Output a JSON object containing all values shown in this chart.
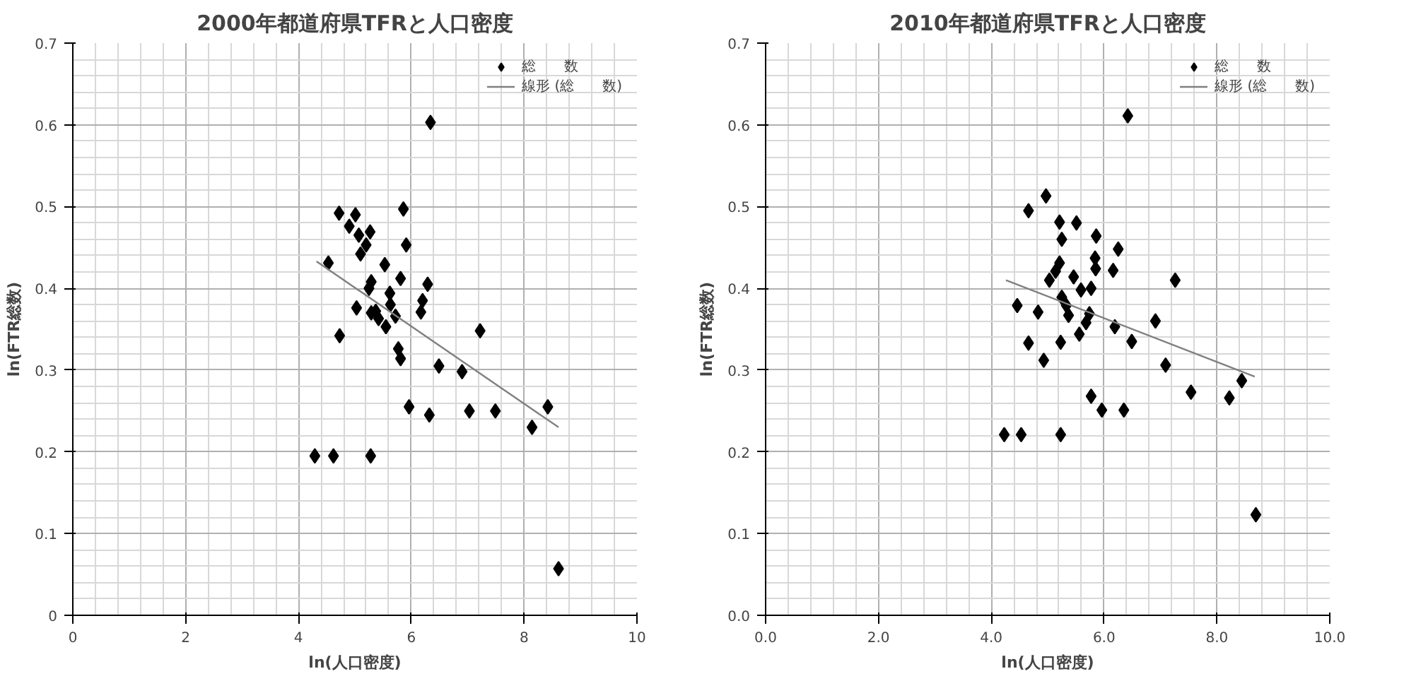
{
  "chart_data": [
    {
      "type": "scatter",
      "title": "2000年都道府県TFRと人口密度",
      "xlabel": "ln(人口密度)",
      "ylabel": "ln(FTR総数)",
      "xlim": [
        0,
        10
      ],
      "ylim": [
        0,
        0.7
      ],
      "xticks": [
        0,
        2,
        4,
        6,
        8,
        10
      ],
      "yticks": [
        0,
        0.1,
        0.2,
        0.3,
        0.4,
        0.5,
        0.6,
        0.7
      ],
      "grid": true,
      "legend": "top right",
      "series": [
        {
          "name": "総　　数",
          "marker": "diamond",
          "color": "#000000",
          "x": [
            6.34,
            4.72,
            5.01,
            5.86,
            4.9,
            5.07,
            5.27,
            5.2,
            5.1,
            5.91,
            4.53,
            5.53,
            5.29,
            5.25,
            5.81,
            6.29,
            5.62,
            6.2,
            6.17,
            5.03,
            5.29,
            5.42,
            5.55,
            5.72,
            5.63,
            5.37,
            4.73,
            7.22,
            5.77,
            5.81,
            6.49,
            6.9,
            5.96,
            6.32,
            7.03,
            7.49,
            8.42,
            8.14,
            4.29,
            4.62,
            5.28,
            8.61
          ],
          "values": [
            0.603,
            0.492,
            0.49,
            0.497,
            0.476,
            0.465,
            0.469,
            0.453,
            0.442,
            0.453,
            0.431,
            0.429,
            0.408,
            0.4,
            0.412,
            0.405,
            0.394,
            0.385,
            0.371,
            0.376,
            0.37,
            0.363,
            0.353,
            0.366,
            0.38,
            0.372,
            0.342,
            0.348,
            0.326,
            0.314,
            0.305,
            0.298,
            0.255,
            0.245,
            0.25,
            0.25,
            0.255,
            0.23,
            0.195,
            0.195,
            0.195,
            0.057
          ]
        },
        {
          "name": "線形 (総　　数)",
          "type": "line",
          "color": "#808080",
          "x": [
            4.32,
            8.61
          ],
          "values": [
            0.433,
            0.23
          ]
        }
      ]
    },
    {
      "type": "scatter",
      "title": "2010年都道府県TFRと人口密度",
      "xlabel": "ln(人口密度)",
      "ylabel": "ln(FTR総数)",
      "xlim": [
        0,
        10
      ],
      "ylim": [
        0,
        0.7
      ],
      "xticks": [
        {
          "value": 0,
          "label": "0.0"
        },
        {
          "value": 2,
          "label": "2.0"
        },
        {
          "value": 4,
          "label": "4.0"
        },
        {
          "value": 6,
          "label": "6.0"
        },
        {
          "value": 8,
          "label": "8.0"
        },
        {
          "value": 10,
          "label": "10.0"
        }
      ],
      "yticks": [
        {
          "value": 0,
          "label": "0.0"
        },
        0.1,
        0.2,
        0.3,
        0.4,
        0.5,
        0.6,
        0.7
      ],
      "grid": true,
      "legend": "top right",
      "series": [
        {
          "name": "総　　数",
          "marker": "diamond",
          "color": "#000000",
          "x": [
            6.42,
            4.97,
            4.66,
            5.21,
            5.51,
            5.25,
            5.86,
            6.25,
            5.84,
            5.85,
            6.16,
            5.21,
            5.14,
            5.03,
            5.46,
            5.59,
            5.77,
            7.26,
            4.46,
            4.83,
            5.25,
            5.33,
            5.37,
            5.74,
            5.68,
            5.56,
            6.19,
            6.91,
            6.49,
            4.66,
            5.23,
            4.93,
            7.09,
            5.77,
            5.96,
            6.35,
            7.54,
            8.22,
            8.44,
            4.23,
            4.53,
            5.23,
            8.69
          ],
          "values": [
            0.611,
            0.513,
            0.495,
            0.481,
            0.48,
            0.46,
            0.464,
            0.448,
            0.437,
            0.424,
            0.422,
            0.431,
            0.421,
            0.41,
            0.414,
            0.398,
            0.4,
            0.41,
            0.379,
            0.371,
            0.389,
            0.379,
            0.367,
            0.369,
            0.358,
            0.344,
            0.353,
            0.36,
            0.335,
            0.333,
            0.334,
            0.312,
            0.306,
            0.268,
            0.251,
            0.251,
            0.273,
            0.266,
            0.287,
            0.221,
            0.221,
            0.221,
            0.123
          ]
        },
        {
          "name": "線形 (総　　数)",
          "type": "line",
          "color": "#808080",
          "x": [
            4.26,
            8.67
          ],
          "values": [
            0.41,
            0.292
          ]
        }
      ]
    }
  ]
}
